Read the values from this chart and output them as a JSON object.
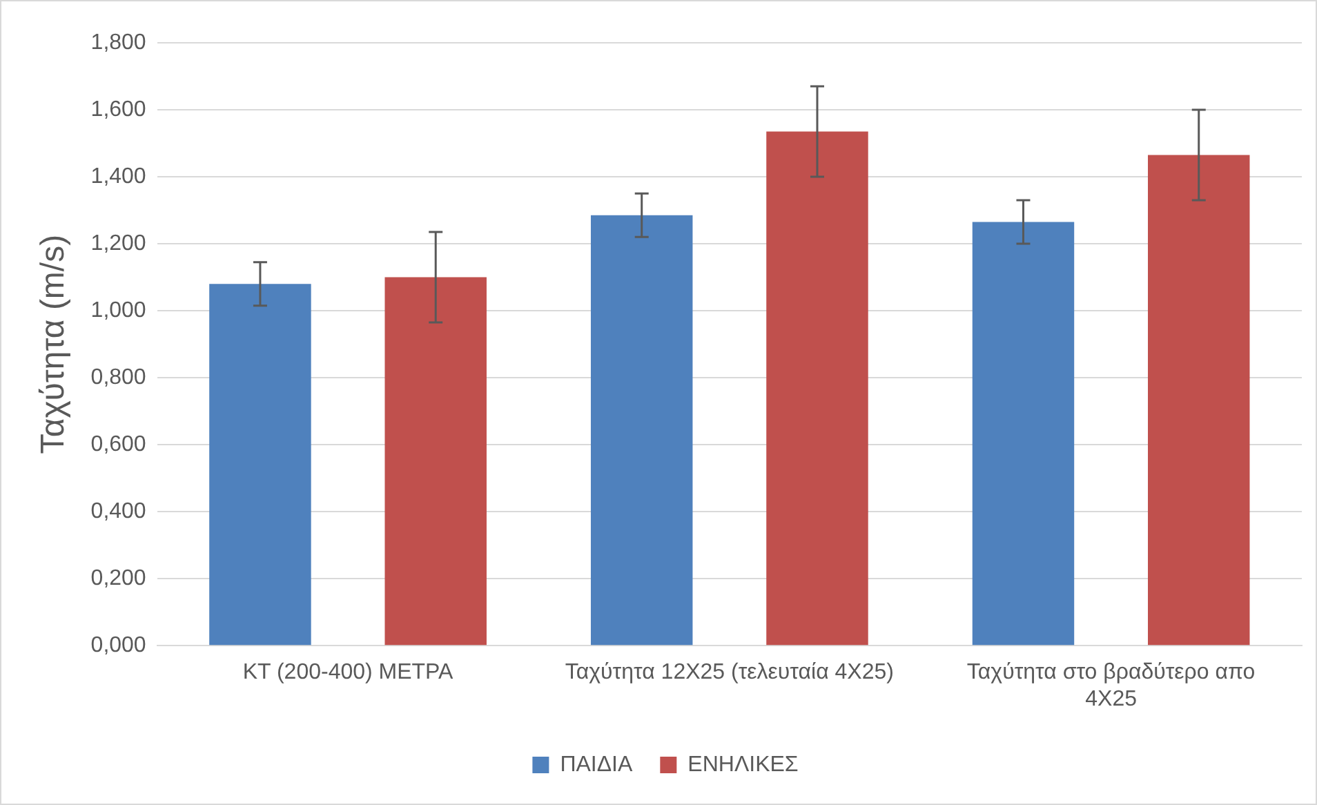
{
  "chart_data": {
    "type": "bar",
    "ylabel": "Ταχύτητα (m/s)",
    "categories": [
      "ΚΤ (200-400) ΜΕΤΡΑ",
      "Ταχύτητα 12Χ25 (τελευταία 4Χ25)",
      "Ταχύτητα στο βραδύτερο απο 4Χ25"
    ],
    "series": [
      {
        "name": "ΠΑΙΔΙΑ",
        "color": "#4f81bd",
        "values": [
          1.08,
          1.285,
          1.265
        ],
        "errors": [
          0.065,
          0.065,
          0.065
        ]
      },
      {
        "name": "ΕΝΗΛΙΚΕΣ",
        "color": "#c0504d",
        "values": [
          1.1,
          1.535,
          1.465
        ],
        "errors": [
          0.135,
          0.135,
          0.135
        ]
      }
    ],
    "ylim": [
      0,
      1.8
    ],
    "yticks": [
      {
        "value": 0,
        "label": "0,000"
      },
      {
        "value": 0.2,
        "label": "0,200"
      },
      {
        "value": 0.4,
        "label": "0,400"
      },
      {
        "value": 0.6,
        "label": "0,600"
      },
      {
        "value": 0.8,
        "label": "0,800"
      },
      {
        "value": 1,
        "label": "1,000"
      },
      {
        "value": 1.2,
        "label": "1,200"
      },
      {
        "value": 1.4,
        "label": "1,400"
      },
      {
        "value": 1.6,
        "label": "1,600"
      },
      {
        "value": 1.8,
        "label": "1,800"
      }
    ],
    "grid": "y",
    "legend": "bottom"
  }
}
